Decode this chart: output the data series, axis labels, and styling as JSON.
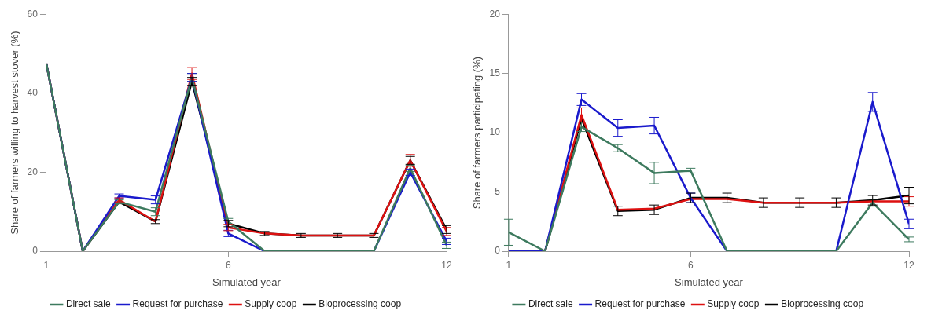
{
  "chart_data": [
    {
      "type": "line",
      "xlabel": "Simulated year",
      "ylabel": "Share of farmers willing to harvest stover (%)",
      "x": [
        1,
        2,
        3,
        4,
        5,
        6,
        7,
        8,
        9,
        10,
        11,
        12
      ],
      "xlim": [
        1,
        12
      ],
      "xticks": [
        1,
        6,
        12
      ],
      "ylim": [
        0,
        60
      ],
      "yticks": [
        0,
        20,
        40,
        60
      ],
      "grid": false,
      "legend": "bottom",
      "series": [
        {
          "name": "Direct sale",
          "color": "#3d7a5e",
          "values": [
            47.5,
            0,
            12.5,
            10,
            44,
            7.5,
            0,
            0,
            0,
            0,
            21,
            1.5
          ],
          "errors": [
            null,
            null,
            0.5,
            1,
            1,
            0.8,
            null,
            null,
            null,
            null,
            0.8,
            0.8
          ]
        },
        {
          "name": "Request for purchase",
          "color": "#1a1acc",
          "values": [
            47.5,
            0,
            14,
            13,
            44,
            4.5,
            0,
            0,
            0,
            0,
            20,
            2.5
          ],
          "errors": [
            null,
            null,
            0.5,
            1,
            1,
            0.8,
            null,
            null,
            null,
            null,
            0.8,
            0.8
          ]
        },
        {
          "name": "Supply coop",
          "color": "#dd1111",
          "values": [
            47.5,
            0,
            13,
            7.5,
            45,
            6,
            4.5,
            4,
            4,
            4,
            23,
            5
          ],
          "errors": [
            null,
            null,
            0.5,
            null,
            1.5,
            0.8,
            null,
            null,
            null,
            null,
            1.5,
            1
          ]
        },
        {
          "name": "Bioprocessing coop",
          "color": "#000000",
          "values": [
            47.5,
            0,
            12.5,
            7.5,
            43,
            7,
            4.5,
            4,
            4,
            4,
            23,
            5.5
          ],
          "errors": [
            null,
            null,
            null,
            0.5,
            1,
            0.8,
            0.5,
            0.5,
            0.5,
            0.5,
            1,
            1
          ]
        }
      ]
    },
    {
      "type": "line",
      "xlabel": "Simulated year",
      "ylabel": "Share of farmers participating (%)",
      "x": [
        1,
        2,
        3,
        4,
        5,
        6,
        7,
        8,
        9,
        10,
        11,
        12
      ],
      "xlim": [
        1,
        12
      ],
      "xticks": [
        1,
        6,
        12
      ],
      "ylim": [
        0,
        20
      ],
      "yticks": [
        0,
        5,
        10,
        15,
        20
      ],
      "grid": false,
      "legend": "bottom",
      "series": [
        {
          "name": "Direct sale",
          "color": "#3d7a5e",
          "values": [
            1.6,
            0,
            10.5,
            8.7,
            6.6,
            6.8,
            0,
            0,
            0,
            0,
            4.1,
            1
          ],
          "errors": [
            1.1,
            null,
            0.4,
            0.3,
            0.9,
            0.2,
            null,
            null,
            null,
            null,
            0.3,
            0.2
          ]
        },
        {
          "name": "Request for purchase",
          "color": "#1a1acc",
          "values": [
            0,
            0,
            12.8,
            10.4,
            10.6,
            4.5,
            0,
            0,
            0,
            0,
            12.6,
            2.3
          ],
          "errors": [
            null,
            null,
            0.5,
            0.7,
            0.7,
            0.4,
            null,
            null,
            null,
            null,
            0.8,
            0.4
          ]
        },
        {
          "name": "Supply coop",
          "color": "#dd1111",
          "values": [
            0,
            0,
            11.5,
            3.5,
            3.6,
            4.4,
            4.4,
            4.1,
            4.1,
            4.1,
            4.2,
            4.2
          ],
          "errors": [
            null,
            null,
            0.6,
            null,
            null,
            null,
            null,
            null,
            null,
            null,
            null,
            0.4
          ]
        },
        {
          "name": "Bioprocessing coop",
          "color": "#000000",
          "values": [
            0,
            0,
            11.2,
            3.4,
            3.5,
            4.5,
            4.5,
            4.1,
            4.1,
            4.1,
            4.3,
            4.7
          ],
          "errors": [
            null,
            null,
            null,
            0.4,
            0.4,
            0.4,
            0.4,
            0.4,
            0.4,
            0.4,
            0.4,
            0.7
          ]
        }
      ]
    }
  ]
}
